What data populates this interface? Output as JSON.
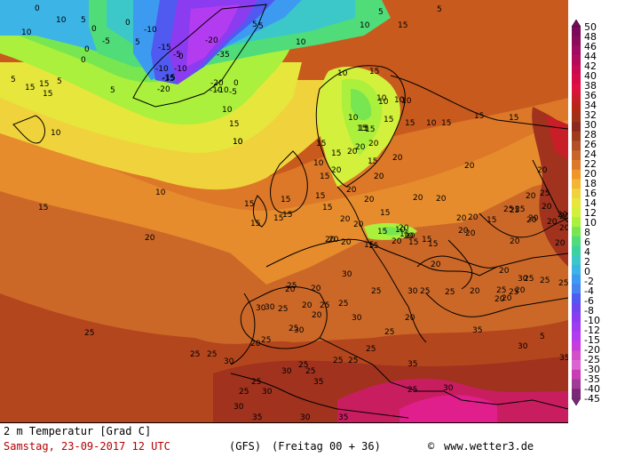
{
  "map": {
    "region": "Europe / North Atlantic",
    "variable": "2 m temperature",
    "contour_labels": [
      {
        "text": "0"
      },
      {
        "text": "10"
      },
      {
        "text": "5"
      },
      {
        "text": "0"
      },
      {
        "text": "-10"
      },
      {
        "text": "0"
      },
      {
        "text": "-5"
      },
      {
        "text": "-15"
      },
      {
        "text": "-5"
      },
      {
        "text": "-10"
      },
      {
        "text": "-20"
      },
      {
        "text": "-35"
      },
      {
        "text": "-15"
      },
      {
        "text": "-10"
      },
      {
        "text": "-15"
      },
      {
        "text": "-20"
      },
      {
        "text": "-20"
      },
      {
        "text": "-10"
      },
      {
        "text": "-10"
      },
      {
        "text": "-5"
      },
      {
        "text": "0"
      },
      {
        "text": "0"
      },
      {
        "text": "5"
      },
      {
        "text": "5"
      },
      {
        "text": "10"
      },
      {
        "text": "5"
      },
      {
        "text": "5"
      },
      {
        "text": "5"
      },
      {
        "text": "0"
      },
      {
        "text": "0"
      },
      {
        "text": "5"
      },
      {
        "text": "5"
      },
      {
        "text": "10"
      },
      {
        "text": "10"
      },
      {
        "text": "15"
      },
      {
        "text": "10"
      },
      {
        "text": "15"
      },
      {
        "text": "10"
      },
      {
        "text": "10"
      },
      {
        "text": "10"
      },
      {
        "text": "15"
      },
      {
        "text": "10"
      },
      {
        "text": "5"
      },
      {
        "text": "10"
      },
      {
        "text": "10"
      },
      {
        "text": "15"
      },
      {
        "text": "15"
      },
      {
        "text": "15"
      },
      {
        "text": "10"
      },
      {
        "text": "15"
      },
      {
        "text": "15"
      },
      {
        "text": "15"
      },
      {
        "text": "10"
      },
      {
        "text": "15"
      },
      {
        "text": "15"
      },
      {
        "text": "15"
      },
      {
        "text": "15"
      },
      {
        "text": "10"
      },
      {
        "text": "15"
      },
      {
        "text": "15"
      },
      {
        "text": "15"
      },
      {
        "text": "15"
      },
      {
        "text": "15"
      },
      {
        "text": "20"
      },
      {
        "text": "20"
      },
      {
        "text": "20"
      },
      {
        "text": "20"
      },
      {
        "text": "20"
      },
      {
        "text": "20"
      },
      {
        "text": "20"
      },
      {
        "text": "20"
      },
      {
        "text": "20"
      },
      {
        "text": "25"
      },
      {
        "text": "20"
      },
      {
        "text": "15"
      },
      {
        "text": "15"
      },
      {
        "text": "15"
      },
      {
        "text": "15"
      },
      {
        "text": "15"
      },
      {
        "text": "10"
      },
      {
        "text": "10"
      },
      {
        "text": "15"
      },
      {
        "text": "20"
      },
      {
        "text": "20"
      },
      {
        "text": "20"
      },
      {
        "text": "20"
      },
      {
        "text": "20"
      },
      {
        "text": "20"
      },
      {
        "text": "20"
      },
      {
        "text": "25"
      },
      {
        "text": "20"
      },
      {
        "text": "25"
      },
      {
        "text": "20"
      },
      {
        "text": "25"
      },
      {
        "text": "25"
      },
      {
        "text": "25"
      },
      {
        "text": "25"
      },
      {
        "text": "20"
      },
      {
        "text": "20"
      },
      {
        "text": "25"
      },
      {
        "text": "25"
      },
      {
        "text": "20"
      },
      {
        "text": "20"
      },
      {
        "text": "20"
      },
      {
        "text": "25"
      },
      {
        "text": "25"
      },
      {
        "text": "30"
      },
      {
        "text": "30"
      },
      {
        "text": "25"
      },
      {
        "text": "20"
      },
      {
        "text": "30"
      },
      {
        "text": "20"
      },
      {
        "text": "30"
      },
      {
        "text": "35"
      },
      {
        "text": "25"
      },
      {
        "text": "30"
      },
      {
        "text": "30"
      },
      {
        "text": "25"
      },
      {
        "text": "25"
      },
      {
        "text": "20"
      },
      {
        "text": "5"
      },
      {
        "text": "25"
      },
      {
        "text": "25"
      },
      {
        "text": "30"
      },
      {
        "text": "30"
      },
      {
        "text": "25"
      },
      {
        "text": "25"
      },
      {
        "text": "25"
      },
      {
        "text": "25"
      },
      {
        "text": "35"
      },
      {
        "text": "35"
      },
      {
        "text": "35"
      },
      {
        "text": "25"
      },
      {
        "text": "30"
      },
      {
        "text": "30"
      },
      {
        "text": "25"
      },
      {
        "text": "30"
      },
      {
        "text": "35"
      },
      {
        "text": "30"
      },
      {
        "text": "35"
      },
      {
        "text": "15"
      },
      {
        "text": "15"
      },
      {
        "text": "15"
      },
      {
        "text": "10"
      },
      {
        "text": "10"
      },
      {
        "text": "15"
      },
      {
        "text": "15"
      },
      {
        "text": "10"
      },
      {
        "text": "15"
      },
      {
        "text": "20"
      },
      {
        "text": "20"
      },
      {
        "text": "20"
      },
      {
        "text": "20"
      },
      {
        "text": "15"
      },
      {
        "text": "20"
      },
      {
        "text": "20"
      },
      {
        "text": "20"
      },
      {
        "text": "15"
      },
      {
        "text": "20"
      },
      {
        "text": "20"
      },
      {
        "text": "15"
      },
      {
        "text": "25"
      },
      {
        "text": "20"
      },
      {
        "text": "15"
      },
      {
        "text": "20"
      },
      {
        "text": "20"
      },
      {
        "text": "25"
      },
      {
        "text": "20"
      },
      {
        "text": "20"
      },
      {
        "text": "20"
      },
      {
        "text": "25"
      },
      {
        "text": "20"
      },
      {
        "text": "20"
      },
      {
        "text": "20"
      },
      {
        "text": "30"
      },
      {
        "text": "25"
      },
      {
        "text": "25"
      },
      {
        "text": "30"
      },
      {
        "text": "20"
      },
      {
        "text": "25"
      },
      {
        "text": "25"
      },
      {
        "text": "10"
      },
      {
        "text": "15"
      }
    ]
  },
  "legend": {
    "labels": [
      "50",
      "48",
      "46",
      "44",
      "42",
      "40",
      "38",
      "36",
      "34",
      "32",
      "30",
      "28",
      "26",
      "24",
      "22",
      "20",
      "18",
      "16",
      "14",
      "12",
      "10",
      "8",
      "6",
      "4",
      "2",
      "0",
      "-2",
      "-4",
      "-6",
      "-8",
      "-10",
      "-12",
      "-15",
      "-20",
      "-25",
      "-30",
      "-35",
      "-40",
      "-45"
    ],
    "colors": [
      "#7a0a5a",
      "#8c0a5a",
      "#a00a60",
      "#b40a5a",
      "#c80a50",
      "#d80a48",
      "#e01040",
      "#c81e28",
      "#b42814",
      "#a03218",
      "#8c281e",
      "#a03c1e",
      "#b45028",
      "#c86428",
      "#dc7828",
      "#f09628",
      "#f5b432",
      "#f0d23c",
      "#e6e63c",
      "#d2f03c",
      "#aaf03c",
      "#78e650",
      "#50dc78",
      "#3cd2a0",
      "#3cc8c8",
      "#3cb4e6",
      "#3c9bf0",
      "#4682f0",
      "#505af0",
      "#6e46f0",
      "#8c3cf0",
      "#a03cf0",
      "#b43cf0",
      "#c83cdc",
      "#d250c8",
      "#dc64d2",
      "#c83cb4",
      "#a03c96",
      "#7a2878"
    ]
  },
  "footer": {
    "title": "2 m Temperatur [Grad C]",
    "date": "Samstag, 23-09-2017  12 UTC",
    "model": "(GFS)",
    "run": "(Freitag 00 + 36)",
    "copyright_symbol": "©",
    "site": "www.wetter3.de"
  }
}
